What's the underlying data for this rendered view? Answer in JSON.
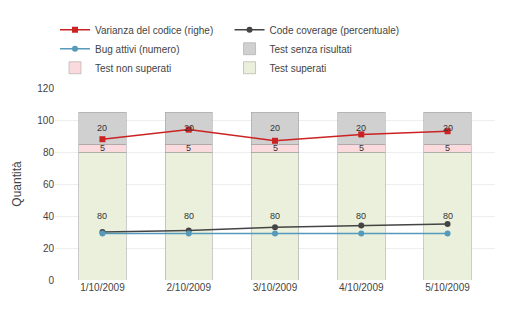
{
  "chart_data": {
    "type": "bar",
    "stacked": true,
    "data_labels": true,
    "grid": true,
    "legend": "top",
    "categories": [
      "1/10/2009",
      "2/10/2009",
      "3/10/2009",
      "4/10/2009",
      "5/10/2009"
    ],
    "ylabel": "Quantità",
    "ylim": [
      0,
      120
    ],
    "yticks": [
      0,
      20,
      40,
      60,
      80,
      100,
      120
    ],
    "series": [
      {
        "name": "Test superati",
        "type": "bar",
        "color": "#eaf0dc",
        "values": [
          80,
          80,
          80,
          80,
          80
        ]
      },
      {
        "name": "Test non superati",
        "type": "bar",
        "color": "#fadadc",
        "values": [
          5,
          5,
          5,
          5,
          5
        ]
      },
      {
        "name": "Test senza risultati",
        "type": "bar",
        "color": "#d0d0d0",
        "values": [
          20,
          20,
          20,
          20,
          20
        ]
      },
      {
        "name": "Varianza del codice (righe)",
        "type": "line",
        "color": "#cc2222",
        "marker": "square",
        "values": [
          88,
          94,
          87,
          91,
          93
        ]
      },
      {
        "name": "Code coverage (percentuale)",
        "type": "line",
        "color": "#444444",
        "marker": "circle",
        "values": [
          30,
          31,
          33,
          34,
          35
        ]
      },
      {
        "name": "Bug attivi (numero)",
        "type": "line",
        "color": "#5599bb",
        "marker": "circle",
        "values": [
          29,
          29,
          29,
          29,
          29
        ]
      }
    ]
  }
}
